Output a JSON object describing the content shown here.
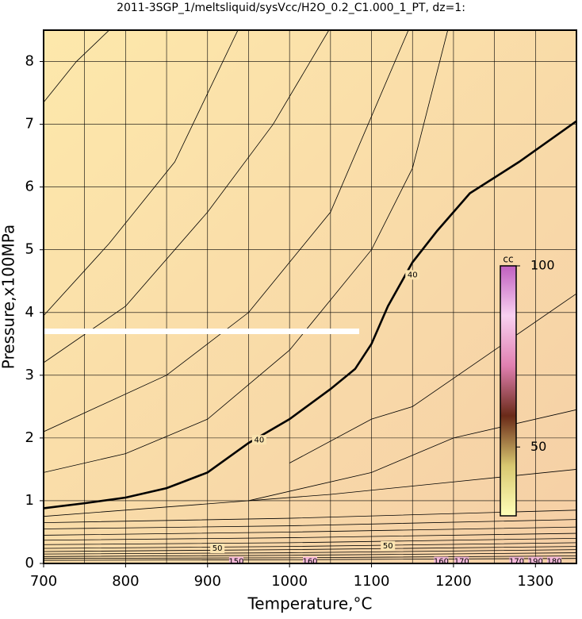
{
  "chart_data": {
    "type": "contour",
    "title": "2011-3SGP_1/meltsliquid/sysVcc/H2O_0.2_C1.000_1_PT, dz=1:",
    "x_label": "Temperature,°C",
    "y_label": "Pressure,x100MPa",
    "xlim": [
      700,
      1350
    ],
    "ylim": [
      0,
      8.5
    ],
    "xticks": [
      700,
      800,
      900,
      1000,
      1100,
      1200,
      1300
    ],
    "xgrid": [
      750,
      850,
      950,
      1050,
      1150,
      1250,
      1350
    ],
    "yticks": [
      0,
      1,
      2,
      3,
      4,
      5,
      6,
      7,
      8
    ],
    "grid": true,
    "contours": [
      {
        "level": 40,
        "bold": true,
        "x": [
          700,
          750,
          800,
          850,
          870,
          900,
          950,
          1000,
          1050,
          1080,
          1100,
          1120,
          1150,
          1180,
          1200,
          1220,
          1280,
          1350
        ],
        "y": [
          0.88,
          0.96,
          1.05,
          1.2,
          1.3,
          1.45,
          1.92,
          2.3,
          2.78,
          3.1,
          3.5,
          4.1,
          4.8,
          5.3,
          5.6,
          5.9,
          6.4,
          7.05
        ]
      },
      {
        "x": [
          700,
          740,
          780
        ],
        "y": [
          7.35,
          8.0,
          8.5
        ]
      },
      {
        "x": [
          700,
          780,
          860,
          937
        ],
        "y": [
          3.95,
          5.1,
          6.4,
          8.5
        ]
      },
      {
        "x": [
          700,
          800,
          900,
          980,
          1048
        ],
        "y": [
          3.2,
          4.1,
          5.6,
          7.0,
          8.5
        ]
      },
      {
        "x": [
          700,
          850,
          950,
          1050,
          1145
        ],
        "y": [
          2.1,
          3.0,
          4.0,
          5.6,
          8.5
        ]
      },
      {
        "x": [
          700,
          800,
          900,
          1000,
          1100,
          1150,
          1193
        ],
        "y": [
          1.45,
          1.75,
          2.3,
          3.4,
          5.0,
          6.3,
          8.5
        ]
      },
      {
        "x": [
          1000,
          1100,
          1150,
          1250,
          1350
        ],
        "y": [
          1.6,
          2.3,
          2.5,
          3.4,
          4.3
        ]
      },
      {
        "x": [
          950,
          1100,
          1200,
          1350
        ],
        "y": [
          1.0,
          1.45,
          2.0,
          2.45
        ]
      },
      {
        "x": [
          700,
          1050,
          1200,
          1350
        ],
        "y": [
          0.75,
          1.1,
          1.3,
          1.5
        ]
      },
      {
        "x": [
          700,
          1000,
          1350
        ],
        "y": [
          0.65,
          0.72,
          0.85
        ]
      },
      {
        "x": [
          700,
          1000,
          1350
        ],
        "y": [
          0.55,
          0.6,
          0.7
        ]
      },
      {
        "x": [
          700,
          1000,
          1350
        ],
        "y": [
          0.45,
          0.5,
          0.58
        ]
      },
      {
        "x": [
          700,
          1000,
          1350
        ],
        "y": [
          0.37,
          0.41,
          0.48
        ]
      },
      {
        "x": [
          700,
          1000,
          1350
        ],
        "y": [
          0.3,
          0.33,
          0.4
        ]
      },
      {
        "x": [
          700,
          1000,
          1350
        ],
        "y": [
          0.24,
          0.27,
          0.33
        ]
      },
      {
        "x": [
          700,
          1000,
          1350
        ],
        "y": [
          0.19,
          0.22,
          0.27
        ]
      },
      {
        "x": [
          700,
          1000,
          1350
        ],
        "y": [
          0.15,
          0.17,
          0.22
        ]
      },
      {
        "x": [
          700,
          1000,
          1350
        ],
        "y": [
          0.11,
          0.13,
          0.17
        ]
      },
      {
        "x": [
          700,
          1000,
          1350
        ],
        "y": [
          0.08,
          0.09,
          0.12
        ]
      },
      {
        "x": [
          700,
          1000,
          1350
        ],
        "y": [
          0.05,
          0.06,
          0.08
        ]
      }
    ],
    "contour_labels": [
      {
        "text": "40",
        "x": 1150,
        "y": 4.6
      },
      {
        "text": "40",
        "x": 963,
        "y": 1.97
      },
      {
        "text": "50",
        "x": 912,
        "y": 0.24
      },
      {
        "text": "50",
        "x": 1120,
        "y": 0.28
      },
      {
        "text": "150",
        "x": 935,
        "y": 0.03
      },
      {
        "text": "160",
        "x": 1025,
        "y": 0.03
      },
      {
        "text": "160",
        "x": 1185,
        "y": 0.03
      },
      {
        "text": "170",
        "x": 1210,
        "y": 0.03
      },
      {
        "text": "170",
        "x": 1277,
        "y": 0.03
      },
      {
        "text": "190",
        "x": 1300,
        "y": 0.03
      },
      {
        "text": "180",
        "x": 1323,
        "y": 0.03
      }
    ],
    "highlight": {
      "x": [
        700,
        1085
      ],
      "y": [
        3.7,
        3.7
      ],
      "color": "#ffffff"
    },
    "colorbar": {
      "label": "cc",
      "clim": [
        31,
        100
      ],
      "ticks": [
        50,
        100
      ],
      "colors": [
        "#ffffb8",
        "#d8c870",
        "#6a2a18",
        "#e080b0",
        "#f8d0f0",
        "#c060c0"
      ]
    }
  }
}
